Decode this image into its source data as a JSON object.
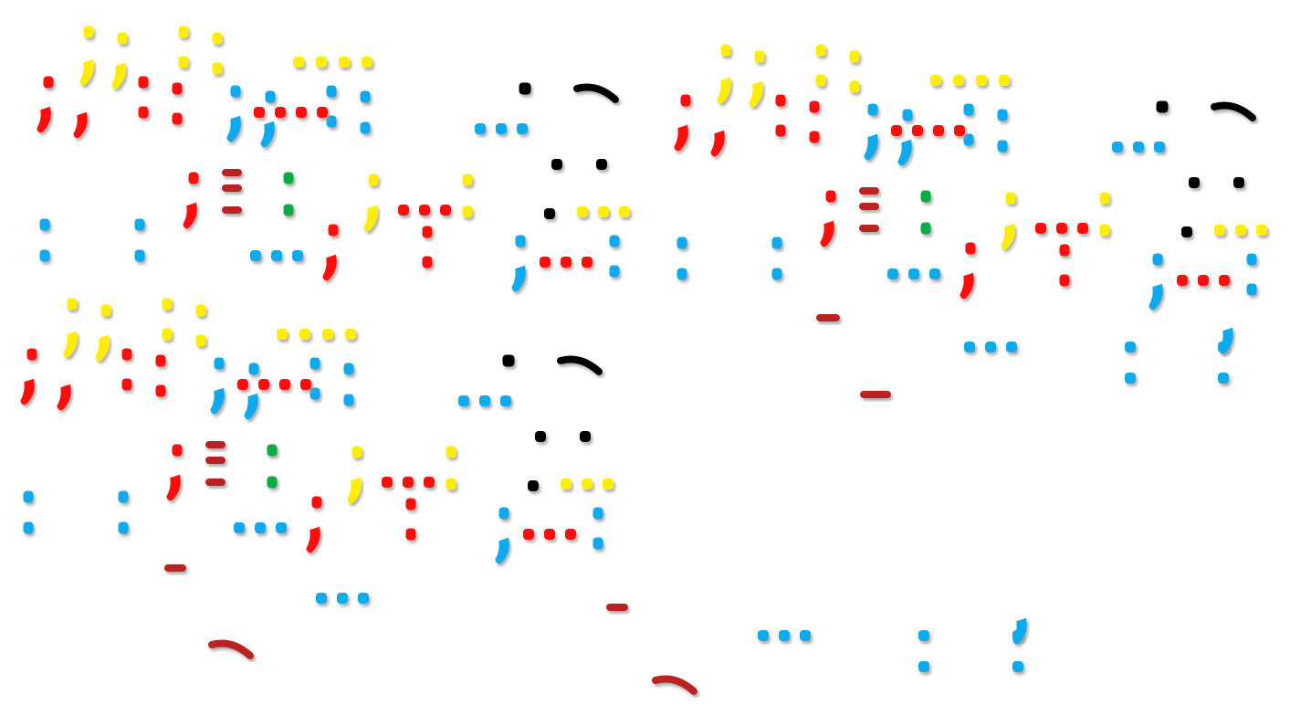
{
  "artwork": {
    "description_name": "colorful-glyph-pattern",
    "colors": {
      "red": "#ff1111",
      "yellow": "#ffee00",
      "blue": "#11aaee",
      "black": "#000000",
      "green": "#11aa44",
      "brown": "#bb2222",
      "shadow": "#999999",
      "background": "#ffffff"
    },
    "tile_count": 3
  }
}
